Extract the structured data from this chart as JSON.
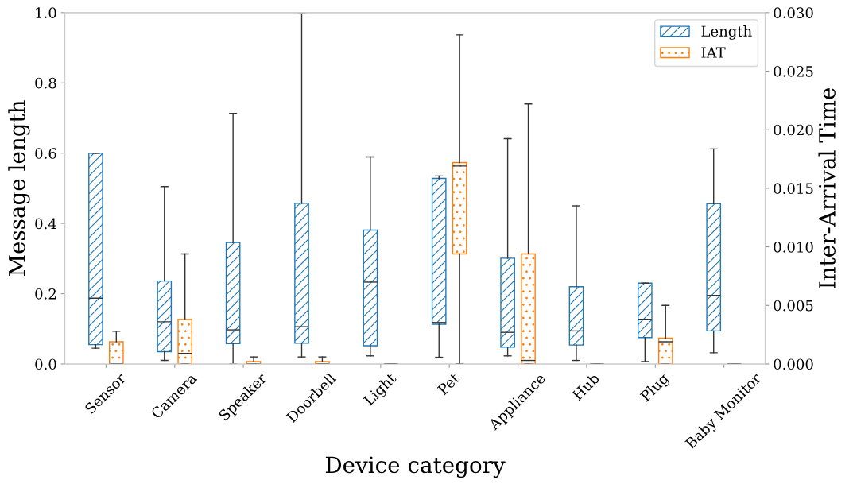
{
  "chart_data": {
    "type": "box",
    "xlabel": "Device category",
    "ylabel": "Message length",
    "y2label": "Inter-Arrival Time",
    "categories": [
      "Sensor",
      "Camera",
      "Speaker",
      "Doorbell",
      "Light",
      "Pet",
      "Appliance",
      "Hub",
      "Plug",
      "Baby Monitor"
    ],
    "series": [
      {
        "name": "Length",
        "color": "#1f77b4",
        "boxes": [
          {
            "low": 0.045,
            "q1": 0.055,
            "median": 0.187,
            "q3": 0.6,
            "high": 0.6
          },
          {
            "low": 0.01,
            "q1": 0.035,
            "median": 0.12,
            "q3": 0.236,
            "high": 0.505
          },
          {
            "low": 0,
            "q1": 0.058,
            "median": 0.097,
            "q3": 0.346,
            "high": 0.713
          },
          {
            "low": 0.02,
            "q1": 0.059,
            "median": 0.106,
            "q3": 0.457,
            "high": 1.0
          },
          {
            "low": 0.023,
            "q1": 0.052,
            "median": 0.233,
            "q3": 0.381,
            "high": 0.589
          },
          {
            "low": 0.019,
            "q1": 0.113,
            "median": 0.118,
            "q3": 0.528,
            "high": 0.535
          },
          {
            "low": 0.023,
            "q1": 0.048,
            "median": 0.09,
            "q3": 0.301,
            "high": 0.641
          },
          {
            "low": 0.01,
            "q1": 0.054,
            "median": 0.094,
            "q3": 0.22,
            "high": 0.45
          },
          {
            "low": 0.007,
            "q1": 0.075,
            "median": 0.126,
            "q3": 0.23,
            "high": 0.23
          },
          {
            "low": 0.032,
            "q1": 0.094,
            "median": 0.195,
            "q3": 0.456,
            "high": 0.612
          }
        ]
      },
      {
        "name": "IAT",
        "color": "#ff7f0e",
        "axis": "y2",
        "boxes": [
          {
            "low": 0,
            "q1": 0,
            "median": 0,
            "q3": 0.0019,
            "high": 0.0028
          },
          {
            "low": 0,
            "q1": 0,
            "median": 0.0009,
            "q3": 0.0038,
            "high": 0.0094
          },
          {
            "low": 0,
            "q1": 0,
            "median": 0,
            "q3": 0.0002,
            "high": 0.0006
          },
          {
            "low": 0,
            "q1": 0,
            "median": 0,
            "q3": 0.0002,
            "high": 0.0006
          },
          {
            "low": 0,
            "q1": 0,
            "median": 0,
            "q3": 0,
            "high": 0
          },
          {
            "low": 0,
            "q1": 0.0094,
            "median": 0.0169,
            "q3": 0.0172,
            "high": 0.0281
          },
          {
            "low": 0,
            "q1": 0,
            "median": 0.0003,
            "q3": 0.0094,
            "high": 0.0222
          },
          {
            "low": 0,
            "q1": 0,
            "median": 0,
            "q3": 0,
            "high": 0
          },
          {
            "low": 0,
            "q1": 0,
            "median": 0.0019,
            "q3": 0.0022,
            "high": 0.005
          },
          {
            "low": 0,
            "q1": 0,
            "median": 0,
            "q3": 0,
            "high": 0
          }
        ]
      }
    ],
    "ylim": [
      0,
      1
    ],
    "yticks": [
      {
        "value": 0,
        "label": "0.0"
      },
      {
        "value": 0.2,
        "label": "0.2"
      },
      {
        "value": 0.4,
        "label": "0.4"
      },
      {
        "value": 0.6,
        "label": "0.6"
      },
      {
        "value": 0.8,
        "label": "0.8"
      },
      {
        "value": 1,
        "label": "1.0"
      }
    ],
    "y2lim": [
      0,
      0.03
    ],
    "y2ticks": [
      {
        "value": 0,
        "label": "0.000"
      },
      {
        "value": 0.005,
        "label": "0.005"
      },
      {
        "value": 0.01,
        "label": "0.010"
      },
      {
        "value": 0.015,
        "label": "0.015"
      },
      {
        "value": 0.02,
        "label": "0.020"
      },
      {
        "value": 0.025,
        "label": "0.025"
      },
      {
        "value": 0.03,
        "label": "0.030"
      }
    ],
    "legend": "top right",
    "grid": false
  }
}
